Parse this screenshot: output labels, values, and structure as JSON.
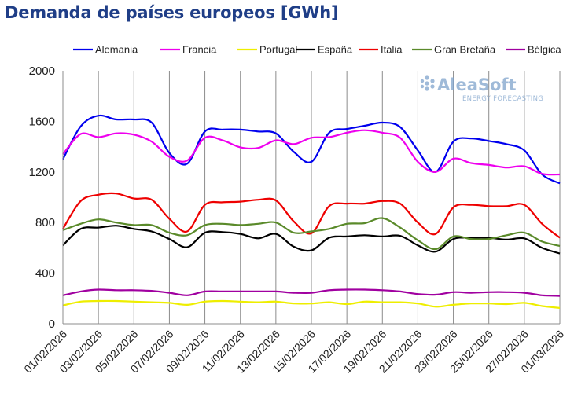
{
  "title": "Demanda de países europeos [GWh]",
  "watermark": {
    "brand": "AleaSoft",
    "tagline": "ENERGY FORECASTING"
  },
  "chart_data": {
    "type": "line",
    "title": "Demanda de países europeos [GWh]",
    "xlabel": "",
    "ylabel": "",
    "ylim": [
      0,
      2000
    ],
    "yticks": [
      0,
      400,
      800,
      1200,
      1600,
      2000
    ],
    "grid": {
      "vertical": true,
      "horizontal": false
    },
    "legend_position": "top",
    "x_tick_labels": [
      "01/02/2026",
      "03/02/2026",
      "05/02/2026",
      "07/02/2026",
      "09/02/2026",
      "11/02/2026",
      "13/02/2026",
      "15/02/2026",
      "17/02/2026",
      "19/02/2026",
      "21/02/2026",
      "23/02/2026",
      "25/02/2026",
      "27/02/2026",
      "01/03/2026"
    ],
    "x": [
      "01/02/2026",
      "02/02/2026",
      "03/02/2026",
      "04/02/2026",
      "05/02/2026",
      "06/02/2026",
      "07/02/2026",
      "08/02/2026",
      "09/02/2026",
      "10/02/2026",
      "11/02/2026",
      "12/02/2026",
      "13/02/2026",
      "14/02/2026",
      "15/02/2026",
      "16/02/2026",
      "17/02/2026",
      "18/02/2026",
      "19/02/2026",
      "20/02/2026",
      "21/02/2026",
      "22/02/2026",
      "23/02/2026",
      "24/02/2026",
      "25/02/2026",
      "26/02/2026",
      "27/02/2026",
      "28/02/2026",
      "01/03/2026"
    ],
    "series": [
      {
        "name": "Alemania",
        "color": "#0000ee",
        "values": [
          1300,
          1560,
          1645,
          1615,
          1615,
          1590,
          1350,
          1265,
          1520,
          1535,
          1535,
          1520,
          1505,
          1360,
          1280,
          1510,
          1540,
          1565,
          1590,
          1555,
          1370,
          1200,
          1440,
          1465,
          1445,
          1420,
          1370,
          1180,
          1110
        ]
      },
      {
        "name": "Francia",
        "color": "#ee00ee",
        "values": [
          1340,
          1500,
          1475,
          1505,
          1495,
          1440,
          1320,
          1290,
          1470,
          1450,
          1395,
          1390,
          1450,
          1420,
          1470,
          1475,
          1510,
          1530,
          1510,
          1470,
          1280,
          1200,
          1305,
          1270,
          1255,
          1235,
          1245,
          1185,
          1180
        ]
      },
      {
        "name": "Portugal",
        "color": "#eeee00",
        "values": [
          145,
          175,
          180,
          180,
          175,
          170,
          165,
          150,
          175,
          180,
          175,
          170,
          175,
          160,
          160,
          170,
          155,
          175,
          170,
          170,
          160,
          135,
          150,
          160,
          160,
          155,
          165,
          140,
          125
        ]
      },
      {
        "name": "España",
        "color": "#000000",
        "values": [
          620,
          750,
          760,
          775,
          750,
          730,
          670,
          605,
          720,
          725,
          710,
          675,
          710,
          610,
          580,
          680,
          690,
          700,
          690,
          695,
          620,
          570,
          670,
          680,
          680,
          665,
          675,
          600,
          555
        ]
      },
      {
        "name": "Italia",
        "color": "#ee0000",
        "values": [
          750,
          970,
          1020,
          1030,
          990,
          980,
          830,
          730,
          940,
          960,
          965,
          980,
          975,
          810,
          715,
          930,
          950,
          950,
          970,
          950,
          800,
          710,
          920,
          940,
          930,
          930,
          940,
          790,
          680
        ]
      },
      {
        "name": "Gran Bretaña",
        "color": "#5a8a2a",
        "values": [
          740,
          790,
          825,
          800,
          780,
          780,
          720,
          700,
          780,
          790,
          780,
          790,
          800,
          720,
          730,
          750,
          790,
          795,
          835,
          760,
          660,
          590,
          690,
          670,
          670,
          700,
          720,
          650,
          615
        ]
      },
      {
        "name": "Bélgica",
        "color": "#a000a0",
        "values": [
          225,
          255,
          270,
          265,
          265,
          260,
          245,
          225,
          255,
          255,
          255,
          255,
          255,
          245,
          245,
          265,
          270,
          270,
          265,
          255,
          235,
          230,
          250,
          245,
          250,
          250,
          245,
          225,
          220
        ]
      }
    ]
  }
}
